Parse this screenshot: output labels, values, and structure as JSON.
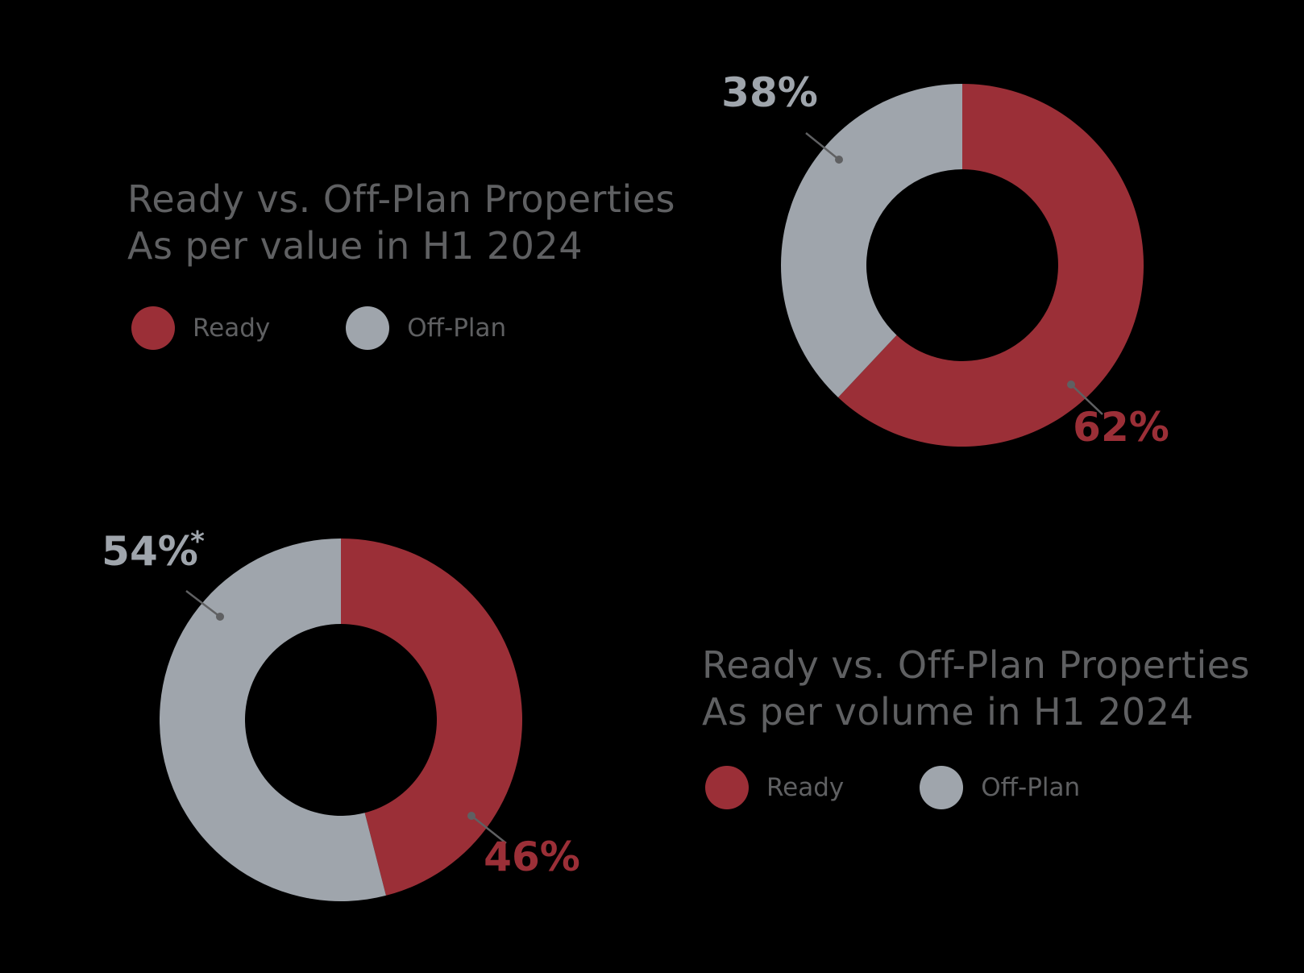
{
  "colors": {
    "ready": "#9b2f37",
    "offplan": "#9fa5ac",
    "text": "#5f6062"
  },
  "chart_data": [
    {
      "type": "pie",
      "title": [
        "Ready vs. Off-Plan Properties",
        "As per value in H1 2024"
      ],
      "legend": [
        {
          "label": "Ready",
          "color": "#9b2f37"
        },
        {
          "label": "Off-Plan",
          "color": "#9fa5ac"
        }
      ],
      "slices": [
        {
          "label": "Ready",
          "value": 62,
          "display": "62%",
          "color": "#9b2f37"
        },
        {
          "label": "Off-Plan",
          "value": 38,
          "display": "38%",
          "color": "#9fa5ac"
        }
      ]
    },
    {
      "type": "pie",
      "title": [
        "Ready vs. Off-Plan Properties",
        "As per volume in H1 2024"
      ],
      "legend": [
        {
          "label": "Ready",
          "color": "#9b2f37"
        },
        {
          "label": "Off-Plan",
          "color": "#9fa5ac"
        }
      ],
      "slices": [
        {
          "label": "Ready",
          "value": 46,
          "display": "46%",
          "color": "#9b2f37"
        },
        {
          "label": "Off-Plan",
          "value": 54,
          "display": "54%",
          "note": "*",
          "color": "#9fa5ac"
        }
      ]
    }
  ]
}
